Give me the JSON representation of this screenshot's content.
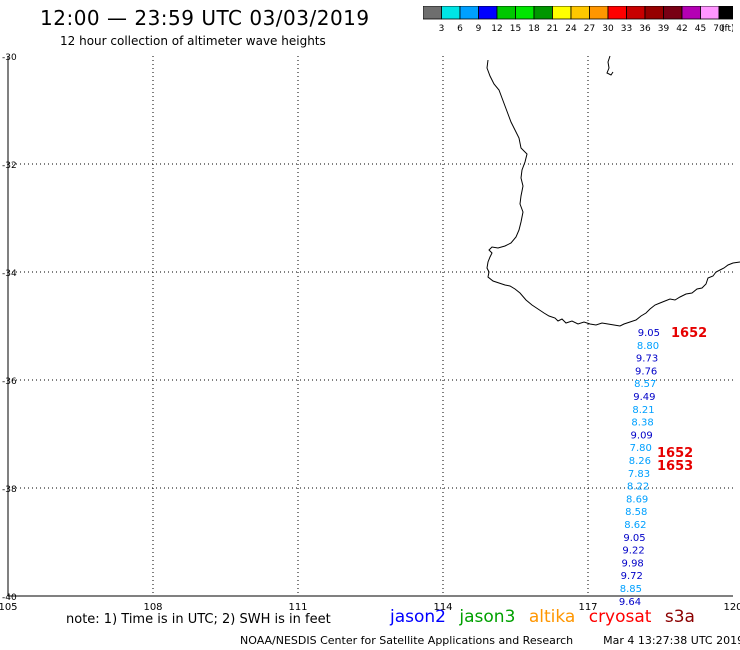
{
  "header": {
    "title": "12:00 — 23:59 UTC 03/03/2019",
    "subtitle": "12 hour collection of altimeter wave heights"
  },
  "colorbar": {
    "colors": [
      "#6e6e6e",
      "#00e5e5",
      "#00a0ff",
      "#0000ff",
      "#00c800",
      "#00e600",
      "#009600",
      "#ffff00",
      "#ffc800",
      "#ff9600",
      "#ff0000",
      "#c80000",
      "#960000",
      "#780014",
      "#b400b4",
      "#ff96ff",
      "#000000"
    ],
    "labels": [
      "3",
      "6",
      "9",
      "12",
      "15",
      "18",
      "21",
      "24",
      "27",
      "30",
      "33",
      "36",
      "39",
      "42",
      "45",
      "70",
      "(ft)"
    ]
  },
  "map": {
    "lon_range": [
      105,
      120
    ],
    "lat_range": [
      -40,
      -30
    ],
    "lat_ticks": [
      "-30",
      "-32",
      "-34",
      "-36",
      "-38",
      "-40"
    ],
    "lon_ticks": [
      "105",
      "108",
      "111",
      "114",
      "117",
      "120"
    ],
    "grid": "dotted"
  },
  "observations": [
    {
      "value": "9.05",
      "color": "#0000c8"
    },
    {
      "value": "8.80",
      "color": "#00a0ff"
    },
    {
      "value": "9.73",
      "color": "#0000c8"
    },
    {
      "value": "9.76",
      "color": "#0000c8"
    },
    {
      "value": "8.57",
      "color": "#00a0ff"
    },
    {
      "value": "9.49",
      "color": "#0000c8"
    },
    {
      "value": "8.21",
      "color": "#00a0ff"
    },
    {
      "value": "8.38",
      "color": "#00a0ff"
    },
    {
      "value": "9.09",
      "color": "#0000c8"
    },
    {
      "value": "7.80",
      "color": "#00a0ff"
    },
    {
      "value": "8.26",
      "color": "#00a0ff"
    },
    {
      "value": "7.83",
      "color": "#00a0ff"
    },
    {
      "value": "8.22",
      "color": "#00a0ff"
    },
    {
      "value": "8.69",
      "color": "#00a0ff"
    },
    {
      "value": "8.58",
      "color": "#00a0ff"
    },
    {
      "value": "8.62",
      "color": "#00a0ff"
    },
    {
      "value": "9.05",
      "color": "#0000c8"
    },
    {
      "value": "9.22",
      "color": "#0000c8"
    },
    {
      "value": "9.98",
      "color": "#0000c8"
    },
    {
      "value": "9.72",
      "color": "#0000c8"
    },
    {
      "value": "8.85",
      "color": "#00a0ff"
    },
    {
      "value": "9.64",
      "color": "#0000c8"
    }
  ],
  "pass_times": [
    "1652",
    "1652",
    "1653"
  ],
  "pass_time_color": "#e60000",
  "note": "note:  1) Time is in UTC;  2) SWH is in feet",
  "legend": [
    {
      "label": "jason2",
      "color": "#0000ff"
    },
    {
      "label": "jason3",
      "color": "#00a000"
    },
    {
      "label": "altika",
      "color": "#ff9600"
    },
    {
      "label": "cryosat",
      "color": "#ff0000"
    },
    {
      "label": "s3a",
      "color": "#8b0000"
    }
  ],
  "footer": {
    "center": "NOAA/NESDIS Center for Satellite Applications and Research",
    "timestamp": "Mar  4 13:27:38 UTC 2019"
  }
}
